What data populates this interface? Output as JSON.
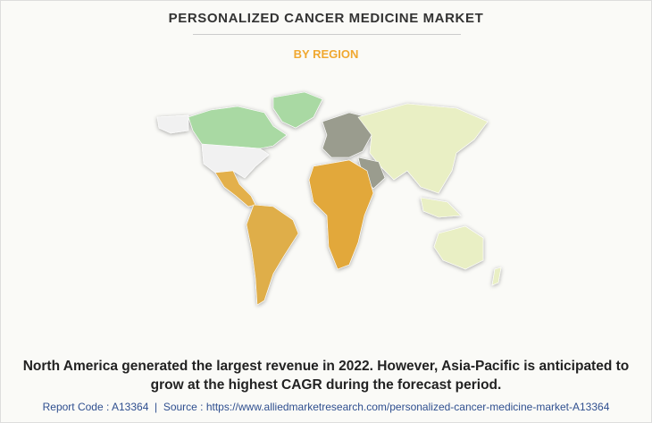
{
  "header": {
    "title": "PERSONALIZED CANCER MEDICINE MARKET",
    "subtitle": "BY REGION"
  },
  "summary": "North America generated the largest revenue in 2022. However, Asia-Pacific is anticipated to grow at the highest CAGR during the forecast period.",
  "footer": "Report Code : A13364  |  Source : https://www.alliedmarketresearch.com/personalized-cancer-medicine-market-A13364"
}
